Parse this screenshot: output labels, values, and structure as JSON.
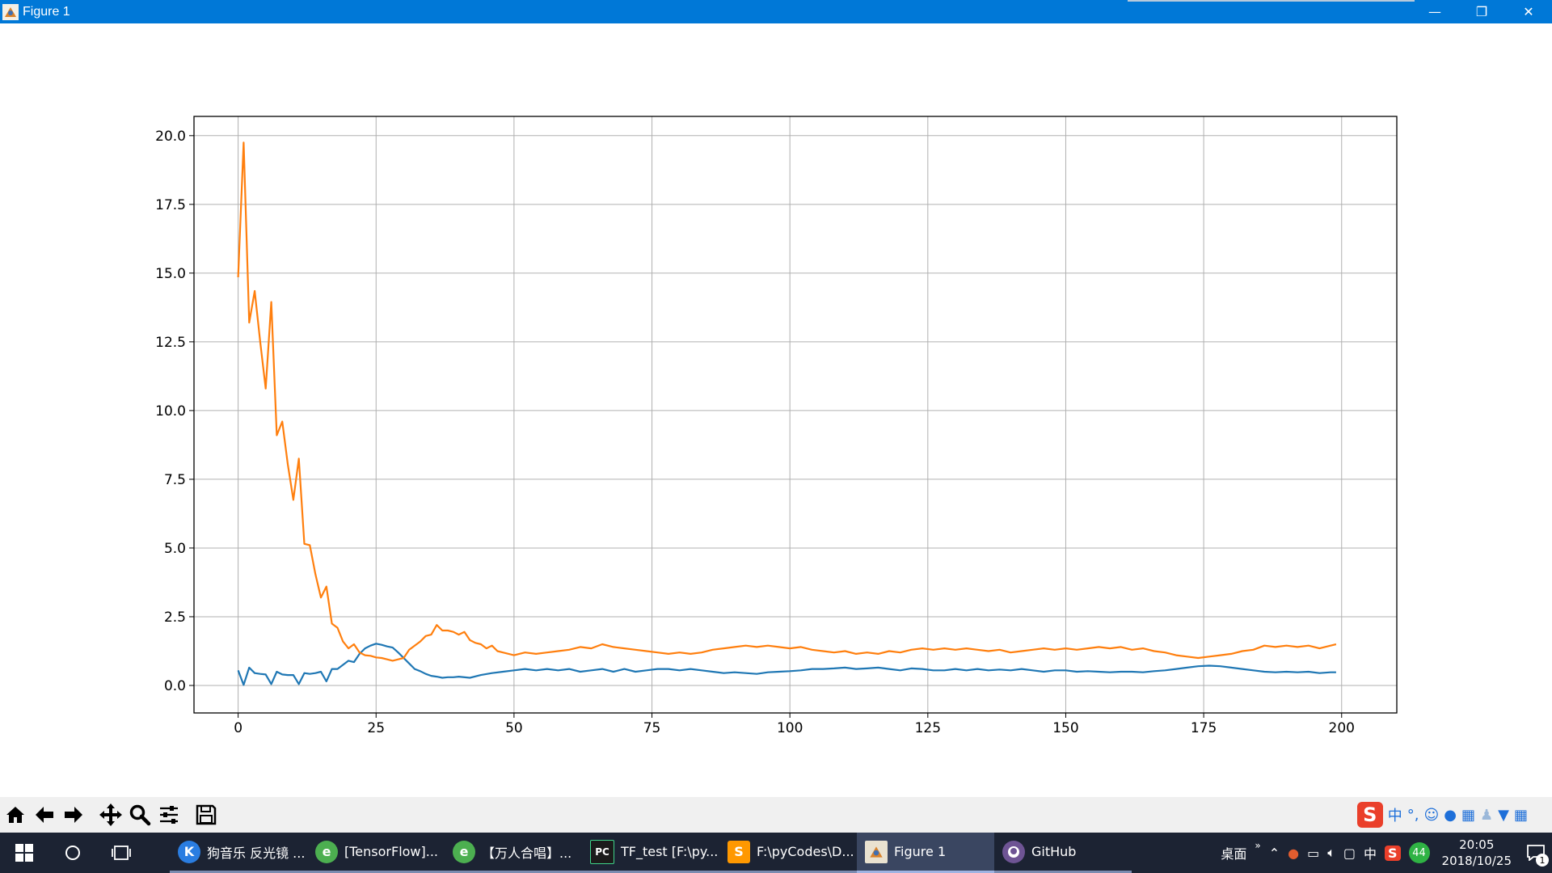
{
  "window": {
    "title": "Figure 1",
    "controls": {
      "minimize": "—",
      "restore": "❐",
      "close": "✕"
    }
  },
  "chart_data": {
    "type": "line",
    "title": "",
    "xlabel": "",
    "ylabel": "",
    "xlim": [
      -8,
      210
    ],
    "ylim": [
      -1.0,
      20.7
    ],
    "x_ticks": [
      0,
      25,
      50,
      75,
      100,
      125,
      150,
      175,
      200
    ],
    "y_ticks": [
      0.0,
      2.5,
      5.0,
      7.5,
      10.0,
      12.5,
      15.0,
      17.5,
      20.0
    ],
    "x_tick_labels": [
      "0",
      "25",
      "50",
      "75",
      "100",
      "125",
      "150",
      "175",
      "200"
    ],
    "y_tick_labels": [
      "0.0",
      "2.5",
      "5.0",
      "7.5",
      "10.0",
      "12.5",
      "15.0",
      "17.5",
      "20.0"
    ],
    "grid": true,
    "series": [
      {
        "color": "#1f77b4",
        "x": [
          0,
          1,
          2,
          3,
          4,
          5,
          6,
          7,
          8,
          9,
          10,
          11,
          12,
          13,
          14,
          15,
          16,
          17,
          18,
          19,
          20,
          21,
          22,
          23,
          24,
          25,
          26,
          27,
          28,
          29,
          30,
          31,
          32,
          33,
          34,
          35,
          36,
          37,
          38,
          39,
          40,
          42,
          44,
          46,
          48,
          50,
          52,
          54,
          56,
          58,
          60,
          62,
          64,
          66,
          68,
          70,
          72,
          74,
          76,
          78,
          80,
          82,
          84,
          86,
          88,
          90,
          92,
          94,
          96,
          98,
          100,
          102,
          104,
          106,
          108,
          110,
          112,
          114,
          116,
          118,
          120,
          122,
          124,
          126,
          128,
          130,
          132,
          134,
          136,
          138,
          140,
          142,
          144,
          146,
          148,
          150,
          152,
          154,
          156,
          158,
          160,
          162,
          164,
          166,
          168,
          170,
          172,
          174,
          176,
          178,
          180,
          182,
          184,
          186,
          188,
          190,
          192,
          194,
          196,
          198,
          199
        ],
        "values": [
          0.55,
          0.02,
          0.65,
          0.45,
          0.42,
          0.4,
          0.05,
          0.5,
          0.4,
          0.38,
          0.38,
          0.05,
          0.45,
          0.42,
          0.45,
          0.5,
          0.15,
          0.6,
          0.6,
          0.75,
          0.9,
          0.85,
          1.15,
          1.35,
          1.45,
          1.52,
          1.48,
          1.42,
          1.38,
          1.2,
          1.0,
          0.8,
          0.6,
          0.52,
          0.42,
          0.35,
          0.32,
          0.28,
          0.3,
          0.3,
          0.32,
          0.28,
          0.38,
          0.45,
          0.5,
          0.55,
          0.6,
          0.55,
          0.6,
          0.55,
          0.6,
          0.5,
          0.55,
          0.6,
          0.5,
          0.6,
          0.5,
          0.55,
          0.6,
          0.6,
          0.55,
          0.6,
          0.55,
          0.5,
          0.45,
          0.48,
          0.45,
          0.42,
          0.48,
          0.5,
          0.52,
          0.55,
          0.6,
          0.6,
          0.62,
          0.65,
          0.6,
          0.62,
          0.65,
          0.6,
          0.55,
          0.62,
          0.6,
          0.55,
          0.55,
          0.6,
          0.55,
          0.6,
          0.55,
          0.58,
          0.55,
          0.6,
          0.55,
          0.5,
          0.55,
          0.55,
          0.5,
          0.52,
          0.5,
          0.48,
          0.5,
          0.5,
          0.48,
          0.52,
          0.55,
          0.6,
          0.65,
          0.7,
          0.72,
          0.7,
          0.65,
          0.6,
          0.55,
          0.5,
          0.48,
          0.5,
          0.48,
          0.5,
          0.45,
          0.48,
          0.48
        ]
      },
      {
        "color": "#ff7f0e",
        "x": [
          0,
          1,
          2,
          3,
          4,
          5,
          6,
          7,
          8,
          9,
          10,
          11,
          12,
          13,
          14,
          15,
          16,
          17,
          18,
          19,
          20,
          21,
          22,
          23,
          24,
          25,
          26,
          27,
          28,
          29,
          30,
          31,
          32,
          33,
          34,
          35,
          36,
          37,
          38,
          39,
          40,
          41,
          42,
          43,
          44,
          45,
          46,
          47,
          48,
          50,
          52,
          54,
          56,
          58,
          60,
          62,
          64,
          66,
          68,
          70,
          72,
          74,
          76,
          78,
          80,
          82,
          84,
          86,
          88,
          90,
          92,
          94,
          96,
          98,
          100,
          102,
          104,
          106,
          108,
          110,
          112,
          114,
          116,
          118,
          120,
          122,
          124,
          126,
          128,
          130,
          132,
          134,
          136,
          138,
          140,
          142,
          144,
          146,
          148,
          150,
          152,
          154,
          156,
          158,
          160,
          162,
          164,
          166,
          168,
          170,
          172,
          174,
          176,
          178,
          180,
          182,
          184,
          186,
          188,
          190,
          192,
          194,
          196,
          198,
          199
        ],
        "values": [
          14.85,
          19.75,
          13.2,
          14.35,
          12.5,
          10.8,
          13.95,
          9.1,
          9.6,
          8.05,
          6.75,
          8.25,
          5.15,
          5.1,
          4.05,
          3.2,
          3.6,
          2.25,
          2.1,
          1.6,
          1.35,
          1.5,
          1.2,
          1.1,
          1.08,
          1.02,
          1.0,
          0.95,
          0.9,
          0.95,
          1.0,
          1.3,
          1.45,
          1.6,
          1.8,
          1.85,
          2.2,
          2.0,
          2.0,
          1.95,
          1.85,
          1.95,
          1.65,
          1.55,
          1.5,
          1.35,
          1.45,
          1.25,
          1.2,
          1.1,
          1.2,
          1.15,
          1.2,
          1.25,
          1.3,
          1.4,
          1.35,
          1.5,
          1.4,
          1.35,
          1.3,
          1.25,
          1.2,
          1.15,
          1.2,
          1.15,
          1.2,
          1.3,
          1.35,
          1.4,
          1.45,
          1.4,
          1.45,
          1.4,
          1.35,
          1.4,
          1.3,
          1.25,
          1.2,
          1.25,
          1.15,
          1.2,
          1.15,
          1.25,
          1.2,
          1.3,
          1.35,
          1.3,
          1.35,
          1.3,
          1.35,
          1.3,
          1.25,
          1.3,
          1.2,
          1.25,
          1.3,
          1.35,
          1.3,
          1.35,
          1.3,
          1.35,
          1.4,
          1.35,
          1.4,
          1.3,
          1.35,
          1.25,
          1.2,
          1.1,
          1.05,
          1.0,
          1.05,
          1.1,
          1.15,
          1.25,
          1.3,
          1.45,
          1.4,
          1.45,
          1.4,
          1.45,
          1.35,
          1.45,
          1.5
        ]
      }
    ]
  },
  "toolbar": {
    "buttons": [
      "home-icon",
      "back-icon",
      "forward-icon",
      "pan-icon",
      "zoom-icon",
      "subplots-icon",
      "save-icon"
    ],
    "ime": {
      "logo": "S",
      "lang": "中",
      "punct": "°,",
      "items": [
        "emoji-icon",
        "mic-icon",
        "keyboard-icon",
        "user-icon",
        "skin-icon",
        "grid-icon"
      ]
    }
  },
  "taskbar": {
    "apps": [
      {
        "label": "狗音乐 反光镜 ...",
        "icon_color": "#2a7de1",
        "icon_letter": "K"
      },
      {
        "label": "[TensorFlow]...",
        "icon_color": "#4caf50",
        "icon_letter": "e"
      },
      {
        "label": "【万人合唱】...",
        "icon_color": "#4caf50",
        "icon_letter": "e"
      },
      {
        "label": "TF_test [F:\\py...",
        "icon_color": "#1b1b1b",
        "icon_letter": "PC"
      },
      {
        "label": "F:\\pyCodes\\D...",
        "icon_color": "#ff9800",
        "icon_letter": "S"
      },
      {
        "label": "Figure 1",
        "icon_color": "#e9e2d0",
        "icon_letter": ""
      },
      {
        "label": "GitHub",
        "icon_color": "#6e5494",
        "icon_letter": ""
      }
    ],
    "desktop_label": "桌面",
    "desktop_more": "»",
    "tray_lang": "中",
    "tray_badge": "44",
    "time": "20:05",
    "date": "2018/10/25",
    "notifications": "1"
  }
}
